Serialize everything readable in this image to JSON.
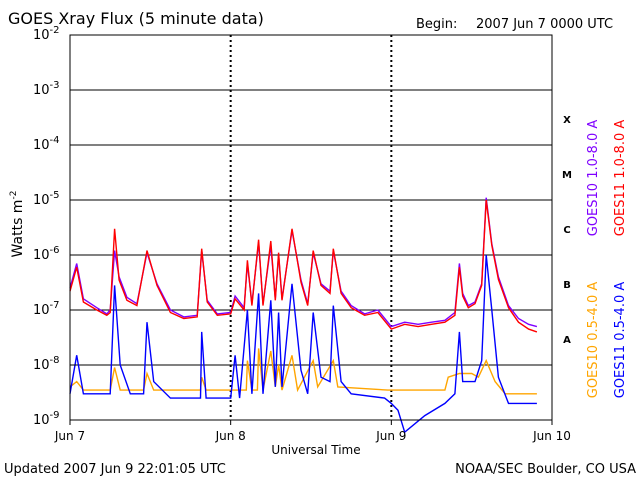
{
  "header": {
    "title": "GOES Xray Flux (5 minute data)",
    "begin_label": "Begin:",
    "begin_value": "2007 Jun 7 0000 UTC"
  },
  "footer": {
    "updated": "Updated 2007 Jun  9 22:01:05 UTC",
    "credit": "NOAA/SEC Boulder, CO USA"
  },
  "chart_data": {
    "type": "line",
    "title": "GOES Xray Flux (5 minute data)",
    "xlabel": "Universal Time",
    "ylabel_base": "Watts m",
    "ylabel_exp": "-2",
    "y_scale": "log",
    "ylim": [
      1e-09,
      0.01
    ],
    "xlim": [
      "2007-06-07",
      "2007-06-10"
    ],
    "x_ticks": [
      {
        "t": "2007-06-07",
        "label": "Jun 7"
      },
      {
        "t": "2007-06-08",
        "label": "Jun 8"
      },
      {
        "t": "2007-06-09",
        "label": "Jun 9"
      },
      {
        "t": "2007-06-10",
        "label": "Jun 10"
      }
    ],
    "y_ticks": [
      {
        "value": 1e-09,
        "base": "10",
        "exp": "-9"
      },
      {
        "value": 1e-08,
        "base": "10",
        "exp": "-8"
      },
      {
        "value": 1e-07,
        "base": "10",
        "exp": "-7"
      },
      {
        "value": 1e-06,
        "base": "10",
        "exp": "-6"
      },
      {
        "value": 1e-05,
        "base": "10",
        "exp": "-5"
      },
      {
        "value": 0.0001,
        "base": "10",
        "exp": "-4"
      },
      {
        "value": 0.001,
        "base": "10",
        "exp": "-3"
      },
      {
        "value": 0.01,
        "base": "10",
        "exp": "-2"
      }
    ],
    "flare_classes": [
      {
        "label": "A",
        "value": 3e-08
      },
      {
        "label": "B",
        "value": 3e-07
      },
      {
        "label": "C",
        "value": 3e-06
      },
      {
        "label": "M",
        "value": 3e-05
      },
      {
        "label": "X",
        "value": 0.0003
      }
    ],
    "grid": "horizontal at each decade from 1e-7 to 1e-3",
    "legend_placement": "right, rotated",
    "series": [
      {
        "name": "GOES10 1.0-8.0 A",
        "color": "#7f00ff",
        "points": [
          [
            "2007-06-07 00:00",
            2.5e-07
          ],
          [
            "2007-06-07 01:00",
            7e-07
          ],
          [
            "2007-06-07 02:00",
            1.6e-07
          ],
          [
            "2007-06-07 04:00",
            1.1e-07
          ],
          [
            "2007-06-07 05:30",
            8.5e-08
          ],
          [
            "2007-06-07 06:00",
            1e-07
          ],
          [
            "2007-06-07 06:40",
            1.2e-06
          ],
          [
            "2007-06-07 07:20",
            4e-07
          ],
          [
            "2007-06-07 08:30",
            1.7e-07
          ],
          [
            "2007-06-07 10:00",
            1.3e-07
          ],
          [
            "2007-06-07 11:30",
            1.1e-06
          ],
          [
            "2007-06-07 13:00",
            3e-07
          ],
          [
            "2007-06-07 15:00",
            1e-07
          ],
          [
            "2007-06-07 17:00",
            7.5e-08
          ],
          [
            "2007-06-07 19:00",
            8e-08
          ],
          [
            "2007-06-07 19:40",
            1.2e-06
          ],
          [
            "2007-06-07 20:30",
            1.5e-07
          ],
          [
            "2007-06-07 22:00",
            8.5e-08
          ],
          [
            "2007-06-08 00:00",
            9e-08
          ],
          [
            "2007-06-08 00:40",
            1.8e-07
          ],
          [
            "2007-06-08 02:00",
            1.1e-07
          ],
          [
            "2007-06-08 02:30",
            7e-07
          ],
          [
            "2007-06-08 03:10",
            1.3e-07
          ],
          [
            "2007-06-08 04:10",
            1.7e-06
          ],
          [
            "2007-06-08 04:50",
            1.3e-07
          ],
          [
            "2007-06-08 06:00",
            1.5e-06
          ],
          [
            "2007-06-08 06:40",
            1.6e-07
          ],
          [
            "2007-06-08 07:10",
            1e-06
          ],
          [
            "2007-06-08 07:40",
            1.6e-07
          ],
          [
            "2007-06-08 09:10",
            2.8e-06
          ],
          [
            "2007-06-08 10:30",
            3.5e-07
          ],
          [
            "2007-06-08 11:30",
            1.3e-07
          ],
          [
            "2007-06-08 12:20",
            1.1e-06
          ],
          [
            "2007-06-08 13:30",
            3e-07
          ],
          [
            "2007-06-08 14:50",
            2.2e-07
          ],
          [
            "2007-06-08 15:20",
            1.2e-06
          ],
          [
            "2007-06-08 16:30",
            2.2e-07
          ],
          [
            "2007-06-08 18:00",
            1.2e-07
          ],
          [
            "2007-06-08 20:00",
            8.5e-08
          ],
          [
            "2007-06-08 22:00",
            1e-07
          ],
          [
            "2007-06-09 00:00",
            5e-08
          ],
          [
            "2007-06-09 02:00",
            6e-08
          ],
          [
            "2007-06-09 04:00",
            5.5e-08
          ],
          [
            "2007-06-09 06:00",
            6e-08
          ],
          [
            "2007-06-09 08:00",
            6.5e-08
          ],
          [
            "2007-06-09 09:30",
            9e-08
          ],
          [
            "2007-06-09 10:10",
            7e-07
          ],
          [
            "2007-06-09 10:40",
            2e-07
          ],
          [
            "2007-06-09 11:30",
            1.2e-07
          ],
          [
            "2007-06-09 12:30",
            1.4e-07
          ],
          [
            "2007-06-09 13:30",
            3e-07
          ],
          [
            "2007-06-09 14:10",
            1.1e-05
          ],
          [
            "2007-06-09 15:00",
            1.6e-06
          ],
          [
            "2007-06-09 16:00",
            4e-07
          ],
          [
            "2007-06-09 17:30",
            1.2e-07
          ],
          [
            "2007-06-09 19:00",
            7e-08
          ],
          [
            "2007-06-09 20:30",
            5.5e-08
          ],
          [
            "2007-06-09 21:45",
            5e-08
          ]
        ]
      },
      {
        "name": "GOES11 1.0-8.0 A",
        "color": "#ff0000",
        "points": [
          [
            "2007-06-07 00:00",
            2.2e-07
          ],
          [
            "2007-06-07 01:00",
            6e-07
          ],
          [
            "2007-06-07 02:00",
            1.4e-07
          ],
          [
            "2007-06-07 04:00",
            1e-07
          ],
          [
            "2007-06-07 05:30",
            8e-08
          ],
          [
            "2007-06-07 06:00",
            9e-08
          ],
          [
            "2007-06-07 06:40",
            3e-06
          ],
          [
            "2007-06-07 07:20",
            3.5e-07
          ],
          [
            "2007-06-07 08:30",
            1.5e-07
          ],
          [
            "2007-06-07 10:00",
            1.2e-07
          ],
          [
            "2007-06-07 11:30",
            1.2e-06
          ],
          [
            "2007-06-07 13:00",
            2.8e-07
          ],
          [
            "2007-06-07 15:00",
            9e-08
          ],
          [
            "2007-06-07 17:00",
            7e-08
          ],
          [
            "2007-06-07 19:00",
            7.5e-08
          ],
          [
            "2007-06-07 19:40",
            1.3e-06
          ],
          [
            "2007-06-07 20:30",
            1.4e-07
          ],
          [
            "2007-06-07 22:00",
            8e-08
          ],
          [
            "2007-06-08 00:00",
            8.5e-08
          ],
          [
            "2007-06-08 00:40",
            1.6e-07
          ],
          [
            "2007-06-08 02:00",
            1e-07
          ],
          [
            "2007-06-08 02:30",
            8e-07
          ],
          [
            "2007-06-08 03:10",
            1.2e-07
          ],
          [
            "2007-06-08 04:10",
            1.9e-06
          ],
          [
            "2007-06-08 04:50",
            1.2e-07
          ],
          [
            "2007-06-08 06:00",
            1.8e-06
          ],
          [
            "2007-06-08 06:40",
            1.5e-07
          ],
          [
            "2007-06-08 07:10",
            1.1e-06
          ],
          [
            "2007-06-08 07:40",
            1.5e-07
          ],
          [
            "2007-06-08 09:10",
            3e-06
          ],
          [
            "2007-06-08 10:30",
            3.2e-07
          ],
          [
            "2007-06-08 11:30",
            1.2e-07
          ],
          [
            "2007-06-08 12:20",
            1.2e-06
          ],
          [
            "2007-06-08 13:30",
            2.8e-07
          ],
          [
            "2007-06-08 14:50",
            2e-07
          ],
          [
            "2007-06-08 15:20",
            1.3e-06
          ],
          [
            "2007-06-08 16:30",
            2e-07
          ],
          [
            "2007-06-08 18:00",
            1.1e-07
          ],
          [
            "2007-06-08 20:00",
            8e-08
          ],
          [
            "2007-06-08 22:00",
            9e-08
          ],
          [
            "2007-06-09 00:00",
            4.5e-08
          ],
          [
            "2007-06-09 02:00",
            5.5e-08
          ],
          [
            "2007-06-09 04:00",
            5e-08
          ],
          [
            "2007-06-09 06:00",
            5.5e-08
          ],
          [
            "2007-06-09 08:00",
            6e-08
          ],
          [
            "2007-06-09 09:30",
            8e-08
          ],
          [
            "2007-06-09 10:10",
            6e-07
          ],
          [
            "2007-06-09 10:40",
            1.8e-07
          ],
          [
            "2007-06-09 11:30",
            1.1e-07
          ],
          [
            "2007-06-09 12:30",
            1.3e-07
          ],
          [
            "2007-06-09 13:30",
            2.8e-07
          ],
          [
            "2007-06-09 14:10",
            1e-05
          ],
          [
            "2007-06-09 15:00",
            1.5e-06
          ],
          [
            "2007-06-09 16:00",
            3.6e-07
          ],
          [
            "2007-06-09 17:30",
            1.1e-07
          ],
          [
            "2007-06-09 19:00",
            6e-08
          ],
          [
            "2007-06-09 20:30",
            4.5e-08
          ],
          [
            "2007-06-09 21:45",
            4e-08
          ]
        ]
      },
      {
        "name": "GOES10 0.5-4.0 A",
        "color": "#ffa500",
        "points": [
          [
            "2007-06-07 00:00",
            4e-09
          ],
          [
            "2007-06-07 01:00",
            5e-09
          ],
          [
            "2007-06-07 02:00",
            3.5e-09
          ],
          [
            "2007-06-07 06:00",
            3.5e-09
          ],
          [
            "2007-06-07 06:40",
            9e-09
          ],
          [
            "2007-06-07 07:30",
            3.5e-09
          ],
          [
            "2007-06-07 11:00",
            3.5e-09
          ],
          [
            "2007-06-07 11:30",
            7e-09
          ],
          [
            "2007-06-07 12:30",
            3.5e-09
          ],
          [
            "2007-06-07 19:30",
            3.5e-09
          ],
          [
            "2007-06-07 19:40",
            6e-09
          ],
          [
            "2007-06-07 20:20",
            3.5e-09
          ],
          [
            "2007-06-08 02:20",
            3.5e-09
          ],
          [
            "2007-06-08 02:30",
            1.2e-08
          ],
          [
            "2007-06-08 03:10",
            3.5e-09
          ],
          [
            "2007-06-08 04:00",
            3.5e-09
          ],
          [
            "2007-06-08 04:10",
            2e-08
          ],
          [
            "2007-06-08 04:50",
            3.5e-09
          ],
          [
            "2007-06-08 06:00",
            1.8e-08
          ],
          [
            "2007-06-08 06:40",
            4e-09
          ],
          [
            "2007-06-08 07:10",
            1e-08
          ],
          [
            "2007-06-08 07:40",
            3.5e-09
          ],
          [
            "2007-06-08 09:10",
            1.5e-08
          ],
          [
            "2007-06-08 10:00",
            3.5e-09
          ],
          [
            "2007-06-08 12:20",
            1.2e-08
          ],
          [
            "2007-06-08 13:00",
            4e-09
          ],
          [
            "2007-06-08 15:20",
            1.2e-08
          ],
          [
            "2007-06-08 16:00",
            4e-09
          ],
          [
            "2007-06-08 23:30",
            3.5e-09
          ],
          [
            "2007-06-09 08:00",
            3.5e-09
          ],
          [
            "2007-06-09 08:30",
            6e-09
          ],
          [
            "2007-06-09 10:10",
            7e-09
          ],
          [
            "2007-06-09 12:00",
            7e-09
          ],
          [
            "2007-06-09 13:00",
            6e-09
          ],
          [
            "2007-06-09 14:10",
            1.2e-08
          ],
          [
            "2007-06-09 15:30",
            5e-09
          ],
          [
            "2007-06-09 17:00",
            3e-09
          ],
          [
            "2007-06-09 21:45",
            3e-09
          ]
        ]
      },
      {
        "name": "GOES11 0.5-4.0 A",
        "color": "#0000ff",
        "points": [
          [
            "2007-06-07 00:00",
            3e-09
          ],
          [
            "2007-06-07 01:00",
            1.5e-08
          ],
          [
            "2007-06-07 02:00",
            3e-09
          ],
          [
            "2007-06-07 06:00",
            3e-09
          ],
          [
            "2007-06-07 06:40",
            2.8e-07
          ],
          [
            "2007-06-07 07:30",
            1e-08
          ],
          [
            "2007-06-07 09:00",
            3e-09
          ],
          [
            "2007-06-07 11:00",
            3e-09
          ],
          [
            "2007-06-07 11:30",
            6e-08
          ],
          [
            "2007-06-07 12:30",
            5e-09
          ],
          [
            "2007-06-07 15:00",
            2.5e-09
          ],
          [
            "2007-06-07 19:30",
            2.5e-09
          ],
          [
            "2007-06-07 19:40",
            4e-08
          ],
          [
            "2007-06-07 20:20",
            2.5e-09
          ],
          [
            "2007-06-08 00:00",
            2.5e-09
          ],
          [
            "2007-06-08 00:40",
            1.5e-08
          ],
          [
            "2007-06-08 01:20",
            2.5e-09
          ],
          [
            "2007-06-08 02:30",
            1e-07
          ],
          [
            "2007-06-08 03:10",
            3e-09
          ],
          [
            "2007-06-08 04:10",
            2e-07
          ],
          [
            "2007-06-08 04:50",
            3e-09
          ],
          [
            "2007-06-08 06:00",
            1.5e-07
          ],
          [
            "2007-06-08 06:40",
            4e-09
          ],
          [
            "2007-06-08 07:10",
            9e-08
          ],
          [
            "2007-06-08 07:40",
            4e-09
          ],
          [
            "2007-06-08 09:10",
            3e-07
          ],
          [
            "2007-06-08 10:30",
            8e-09
          ],
          [
            "2007-06-08 11:30",
            3e-09
          ],
          [
            "2007-06-08 12:20",
            9e-08
          ],
          [
            "2007-06-08 13:30",
            6e-09
          ],
          [
            "2007-06-08 14:50",
            5e-09
          ],
          [
            "2007-06-08 15:20",
            1.2e-07
          ],
          [
            "2007-06-08 16:30",
            5e-09
          ],
          [
            "2007-06-08 18:00",
            3e-09
          ],
          [
            "2007-06-08 23:00",
            2.5e-09
          ],
          [
            "2007-06-09 00:00",
            2e-09
          ],
          [
            "2007-06-09 01:00",
            1.5e-09
          ],
          [
            "2007-06-09 02:00",
            6e-10
          ],
          [
            "2007-06-09 05:00",
            1.2e-09
          ],
          [
            "2007-06-09 08:00",
            2e-09
          ],
          [
            "2007-06-09 09:30",
            3e-09
          ],
          [
            "2007-06-09 10:10",
            4e-08
          ],
          [
            "2007-06-09 10:40",
            5e-09
          ],
          [
            "2007-06-09 12:30",
            5e-09
          ],
          [
            "2007-06-09 13:30",
            1.2e-08
          ],
          [
            "2007-06-09 14:10",
            1e-06
          ],
          [
            "2007-06-09 15:00",
            1e-07
          ],
          [
            "2007-06-09 16:00",
            6e-09
          ],
          [
            "2007-06-09 17:30",
            2e-09
          ],
          [
            "2007-06-09 21:45",
            2e-09
          ]
        ]
      }
    ]
  }
}
